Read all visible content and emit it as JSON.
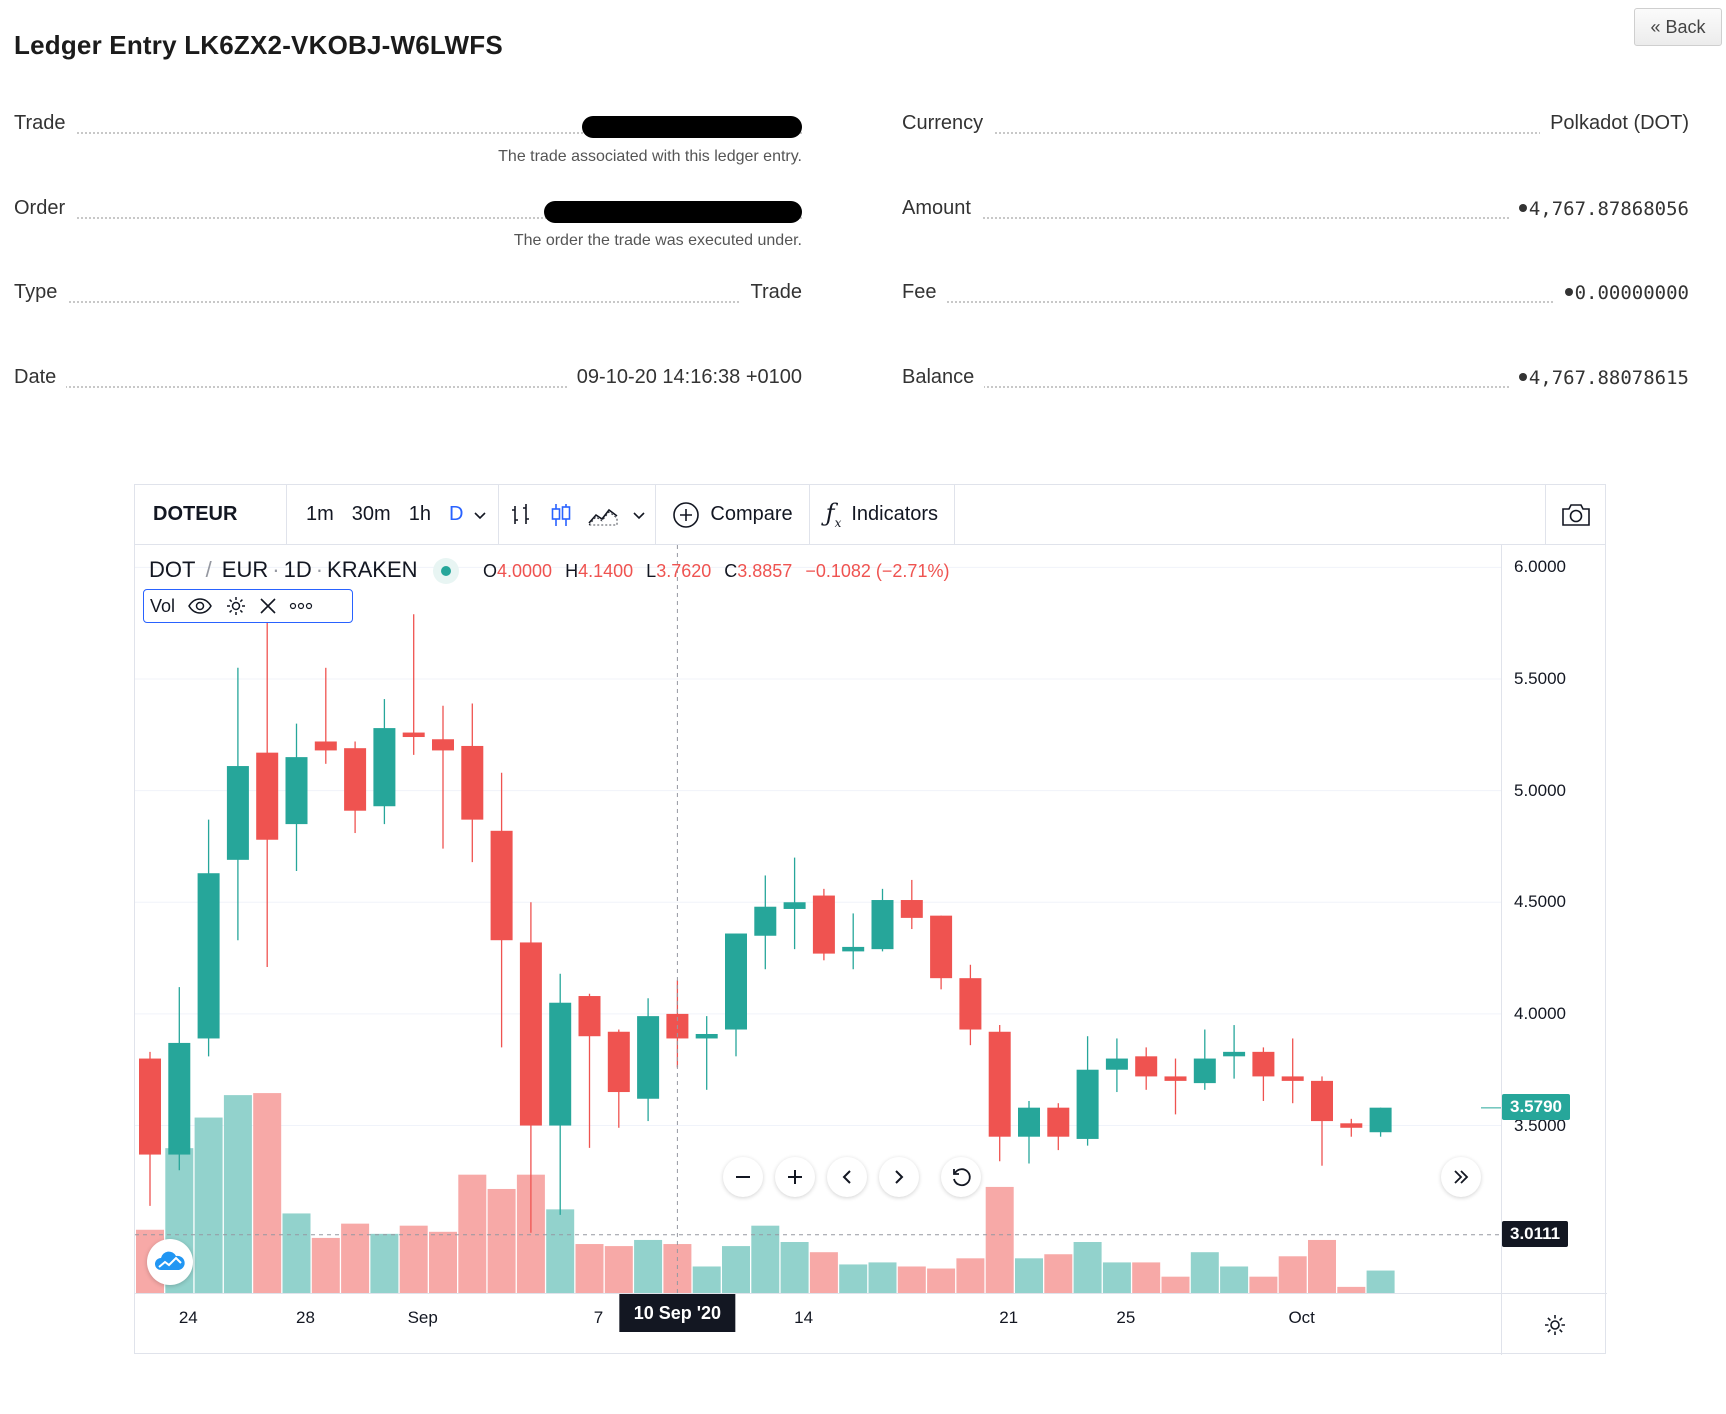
{
  "page": {
    "title": "Ledger Entry LK6ZX2-VKOBJ-W6LWFS",
    "back_label": "« Back"
  },
  "details_left": {
    "trade_label": "Trade",
    "trade_help": "The trade associated with this ledger entry.",
    "order_label": "Order",
    "order_help": "The order the trade was executed under.",
    "type_label": "Type",
    "type_value": "Trade",
    "date_label": "Date",
    "date_value": "09-10-20 14:16:38 +0100"
  },
  "details_right": {
    "currency_label": "Currency",
    "currency_value": "Polkadot (DOT)",
    "amount_label": "Amount",
    "amount_value": "4,767.87868056",
    "fee_label": "Fee",
    "fee_value": "0.00000000",
    "balance_label": "Balance",
    "balance_value": "4,767.88078615"
  },
  "chart_toolbar": {
    "symbol": "DOTEUR",
    "intervals": [
      "1m",
      "30m",
      "1h",
      "D"
    ],
    "active_interval": "D",
    "compare_label": "Compare",
    "indicators_label": "Indicators"
  },
  "chart_legend": {
    "base": "DOT",
    "quote": "EUR",
    "interval": "1D",
    "exchange": "KRAKEN",
    "o_key": "O",
    "o_val": "4.0000",
    "h_key": "H",
    "h_val": "4.1400",
    "l_key": "L",
    "l_val": "3.7620",
    "c_key": "C",
    "c_val": "3.8857",
    "change": "−0.1082 (−2.71%)",
    "vol_label": "Vol"
  },
  "colors": {
    "up": "#26a69a",
    "down": "#ef5350",
    "vol_up": "#92d2cc",
    "vol_down": "#f7a9a7",
    "accent": "#2962ff"
  },
  "chart_data": {
    "type": "candlestick",
    "symbol": "DOT / EUR · 1D · KRAKEN",
    "y_ticks": [
      "6.0000",
      "5.5000",
      "5.0000",
      "4.5000",
      "4.0000",
      "3.5000"
    ],
    "y_range": [
      2.75,
      6.1
    ],
    "last_price": "3.5790",
    "crosshair_price": "3.0111",
    "crosshair_date": "10 Sep '20",
    "x_ticks": [
      "24",
      "28",
      "Sep",
      "7",
      "14",
      "21",
      "25",
      "Oct"
    ],
    "candles": [
      {
        "o": 3.8,
        "h": 3.83,
        "l": 3.14,
        "c": 3.37
      },
      {
        "o": 3.37,
        "h": 4.12,
        "l": 3.3,
        "c": 3.87
      },
      {
        "o": 3.89,
        "h": 4.87,
        "l": 3.81,
        "c": 4.63
      },
      {
        "o": 4.69,
        "h": 5.55,
        "l": 4.33,
        "c": 5.11
      },
      {
        "o": 5.17,
        "h": 5.85,
        "l": 4.21,
        "c": 4.78
      },
      {
        "o": 4.85,
        "h": 5.3,
        "l": 4.64,
        "c": 5.15
      },
      {
        "o": 5.22,
        "h": 5.55,
        "l": 5.12,
        "c": 5.18
      },
      {
        "o": 5.19,
        "h": 5.22,
        "l": 4.81,
        "c": 4.91
      },
      {
        "o": 4.93,
        "h": 5.41,
        "l": 4.85,
        "c": 5.28
      },
      {
        "o": 5.26,
        "h": 5.79,
        "l": 5.16,
        "c": 5.24
      },
      {
        "o": 5.23,
        "h": 5.38,
        "l": 4.74,
        "c": 5.18
      },
      {
        "o": 5.2,
        "h": 5.39,
        "l": 4.68,
        "c": 4.87
      },
      {
        "o": 4.82,
        "h": 5.08,
        "l": 3.85,
        "c": 4.33
      },
      {
        "o": 4.32,
        "h": 4.5,
        "l": 3.02,
        "c": 3.5
      },
      {
        "o": 3.5,
        "h": 4.18,
        "l": 3.1,
        "c": 4.05
      },
      {
        "o": 4.08,
        "h": 4.09,
        "l": 3.4,
        "c": 3.9
      },
      {
        "o": 3.92,
        "h": 3.93,
        "l": 3.49,
        "c": 3.65
      },
      {
        "o": 3.62,
        "h": 4.07,
        "l": 3.52,
        "c": 3.99
      },
      {
        "o": 4.0,
        "h": 4.15,
        "l": 3.76,
        "c": 3.89
      },
      {
        "o": 3.89,
        "h": 3.99,
        "l": 3.66,
        "c": 3.91
      },
      {
        "o": 3.93,
        "h": 4.36,
        "l": 3.81,
        "c": 4.36
      },
      {
        "o": 4.35,
        "h": 4.62,
        "l": 4.2,
        "c": 4.48
      },
      {
        "o": 4.47,
        "h": 4.7,
        "l": 4.29,
        "c": 4.5
      },
      {
        "o": 4.53,
        "h": 4.56,
        "l": 4.24,
        "c": 4.27
      },
      {
        "o": 4.28,
        "h": 4.45,
        "l": 4.2,
        "c": 4.3
      },
      {
        "o": 4.29,
        "h": 4.56,
        "l": 4.28,
        "c": 4.51
      },
      {
        "o": 4.51,
        "h": 4.6,
        "l": 4.38,
        "c": 4.43
      },
      {
        "o": 4.44,
        "h": 4.44,
        "l": 4.11,
        "c": 4.16
      },
      {
        "o": 4.16,
        "h": 4.22,
        "l": 3.86,
        "c": 3.93
      },
      {
        "o": 3.92,
        "h": 3.95,
        "l": 3.34,
        "c": 3.45
      },
      {
        "o": 3.45,
        "h": 3.61,
        "l": 3.33,
        "c": 3.58
      },
      {
        "o": 3.58,
        "h": 3.6,
        "l": 3.39,
        "c": 3.45
      },
      {
        "o": 3.44,
        "h": 3.9,
        "l": 3.41,
        "c": 3.75
      },
      {
        "o": 3.75,
        "h": 3.89,
        "l": 3.65,
        "c": 3.8
      },
      {
        "o": 3.81,
        "h": 3.85,
        "l": 3.66,
        "c": 3.72
      },
      {
        "o": 3.72,
        "h": 3.8,
        "l": 3.55,
        "c": 3.7
      },
      {
        "o": 3.69,
        "h": 3.93,
        "l": 3.66,
        "c": 3.8
      },
      {
        "o": 3.81,
        "h": 3.95,
        "l": 3.71,
        "c": 3.83
      },
      {
        "o": 3.83,
        "h": 3.85,
        "l": 3.61,
        "c": 3.72
      },
      {
        "o": 3.72,
        "h": 3.89,
        "l": 3.6,
        "c": 3.7
      },
      {
        "o": 3.7,
        "h": 3.72,
        "l": 3.32,
        "c": 3.52
      },
      {
        "o": 3.51,
        "h": 3.53,
        "l": 3.45,
        "c": 3.49
      },
      {
        "o": 3.47,
        "h": 3.58,
        "l": 3.45,
        "c": 3.58
      }
    ],
    "volumes": [
      0.31,
      0.71,
      0.86,
      0.97,
      0.98,
      0.39,
      0.27,
      0.34,
      0.29,
      0.33,
      0.3,
      0.58,
      0.51,
      0.58,
      0.41,
      0.24,
      0.23,
      0.26,
      0.24,
      0.13,
      0.23,
      0.33,
      0.25,
      0.2,
      0.14,
      0.15,
      0.13,
      0.12,
      0.17,
      0.52,
      0.17,
      0.19,
      0.25,
      0.15,
      0.15,
      0.08,
      0.2,
      0.13,
      0.08,
      0.18,
      0.26,
      0.03,
      0.11
    ]
  }
}
